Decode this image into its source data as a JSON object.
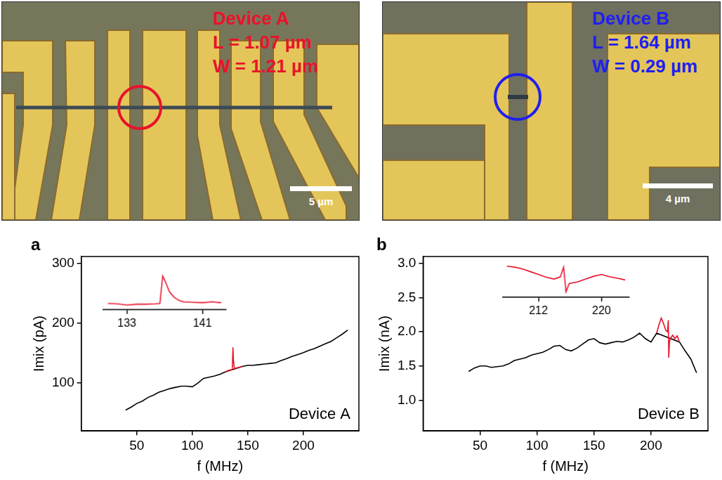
{
  "photos": [
    {
      "title": "Device A",
      "lines": [
        "L = 1.07 µm",
        "W = 1.21 µm"
      ],
      "color": "#e8132b",
      "scale_bar": "5 µm"
    },
    {
      "title": "Device B",
      "lines": [
        "L = 1.64 µm",
        "W = 0.29 µm"
      ],
      "color": "#1f1ff0",
      "scale_bar": "4 µm"
    }
  ],
  "chart_data": [
    {
      "type": "line",
      "panel_label": "a",
      "x_label": "f (MHz)",
      "y_label": "Imix (pA)",
      "annotation": "Device A",
      "xlim": [
        0,
        250
      ],
      "xticks": [
        50,
        100,
        150,
        200
      ],
      "ylim": [
        20,
        312
      ],
      "yticks": [
        100,
        200,
        300
      ],
      "series": [
        {
          "color": "#000000",
          "x": [
            40,
            45,
            50,
            55,
            60,
            65,
            70,
            75,
            80,
            85,
            90,
            95,
            100,
            105,
            110,
            115,
            120,
            125,
            130,
            145,
            150,
            155,
            160,
            165,
            170,
            175,
            180,
            185,
            190,
            195,
            200,
            205,
            210,
            215,
            220,
            225,
            230,
            235,
            240
          ],
          "values": [
            55,
            60,
            66,
            70,
            76,
            80,
            85,
            88,
            91,
            93,
            95,
            95,
            94,
            100,
            108,
            110,
            112,
            115,
            119,
            128,
            130,
            130,
            131,
            132,
            133,
            134,
            138,
            141,
            145,
            148,
            151,
            155,
            158,
            162,
            166,
            170,
            176,
            182,
            189
          ]
        },
        {
          "color": "#e8132b",
          "x": [
            130,
            132,
            134,
            136,
            136.6,
            137,
            137.6,
            138.2,
            139,
            141,
            143,
            145
          ],
          "values": [
            119,
            121,
            122,
            123,
            160,
            140,
            128,
            125,
            125,
            126,
            127,
            128
          ]
        }
      ],
      "inset": {
        "type": "line",
        "tick_labels": "x",
        "xlim": [
          130.5,
          143.5
        ],
        "xticks": [
          133,
          141
        ],
        "ylim": [
          115,
          162
        ],
        "series": [
          {
            "color": "#e8132b",
            "x": [
              131,
              132,
              133,
              134,
              135,
              136,
              136.5,
              136.8,
              137.1,
              137.5,
              138,
              138.5,
              139,
              140,
              141,
              142,
              143
            ],
            "values": [
              123,
              122.5,
              121,
              122,
              122,
              122.5,
              123,
              158,
              150,
              138,
              131,
              127,
              125,
              124.5,
              124,
              125,
              124
            ]
          }
        ]
      }
    },
    {
      "type": "line",
      "panel_label": "b",
      "x_label": "f (MHz)",
      "y_label": "Imix (nA)",
      "annotation": "Device B",
      "xlim": [
        0,
        250
      ],
      "xticks": [
        50,
        100,
        150,
        200
      ],
      "ylim": [
        0.55,
        3.1
      ],
      "yticks": [
        {
          "value": 1,
          "label": "1.0"
        },
        1.5,
        {
          "value": 2,
          "label": "2.0"
        },
        2.5,
        {
          "value": 3,
          "label": "3.0"
        }
      ],
      "series": [
        {
          "color": "#000000",
          "x": [
            40,
            45,
            50,
            55,
            60,
            65,
            70,
            75,
            80,
            85,
            90,
            95,
            100,
            105,
            110,
            115,
            120,
            125,
            130,
            135,
            140,
            145,
            150,
            155,
            160,
            165,
            170,
            175,
            180,
            185,
            190,
            195,
            200,
            205,
            225,
            230,
            235,
            238,
            240
          ],
          "values": [
            1.42,
            1.47,
            1.5,
            1.5,
            1.48,
            1.49,
            1.5,
            1.53,
            1.58,
            1.6,
            1.62,
            1.66,
            1.68,
            1.7,
            1.74,
            1.79,
            1.8,
            1.74,
            1.72,
            1.76,
            1.82,
            1.88,
            1.9,
            1.84,
            1.82,
            1.84,
            1.86,
            1.85,
            1.88,
            1.92,
            1.98,
            1.9,
            1.85,
            1.98,
            1.85,
            1.72,
            1.6,
            1.48,
            1.4
          ]
        },
        {
          "color": "#e8132b",
          "x": [
            205,
            207,
            209,
            211,
            213,
            214.5,
            215.2,
            215.6,
            216.2,
            217,
            219,
            221,
            223,
            225
          ],
          "values": [
            1.98,
            2.1,
            2.2,
            2.12,
            2.02,
            2.0,
            2.17,
            1.62,
            1.85,
            1.9,
            1.95,
            1.9,
            1.94,
            1.85
          ]
        }
      ],
      "inset": {
        "type": "line",
        "tick_labels": "x",
        "xlim": [
          207.5,
          223.5
        ],
        "xticks": [
          212,
          220
        ],
        "ylim": [
          2.1,
          2.9
        ],
        "series": [
          {
            "color": "#e8132b",
            "x": [
              208,
              209,
              210,
              211,
              212,
              213,
              214,
              214.8,
              215.2,
              215.5,
              215.9,
              217,
              218,
              219,
              220,
              221,
              222,
              223
            ],
            "values": [
              2.78,
              2.76,
              2.72,
              2.66,
              2.6,
              2.54,
              2.5,
              2.55,
              2.76,
              2.22,
              2.4,
              2.44,
              2.5,
              2.56,
              2.6,
              2.55,
              2.52,
              2.48
            ]
          }
        ]
      }
    }
  ]
}
